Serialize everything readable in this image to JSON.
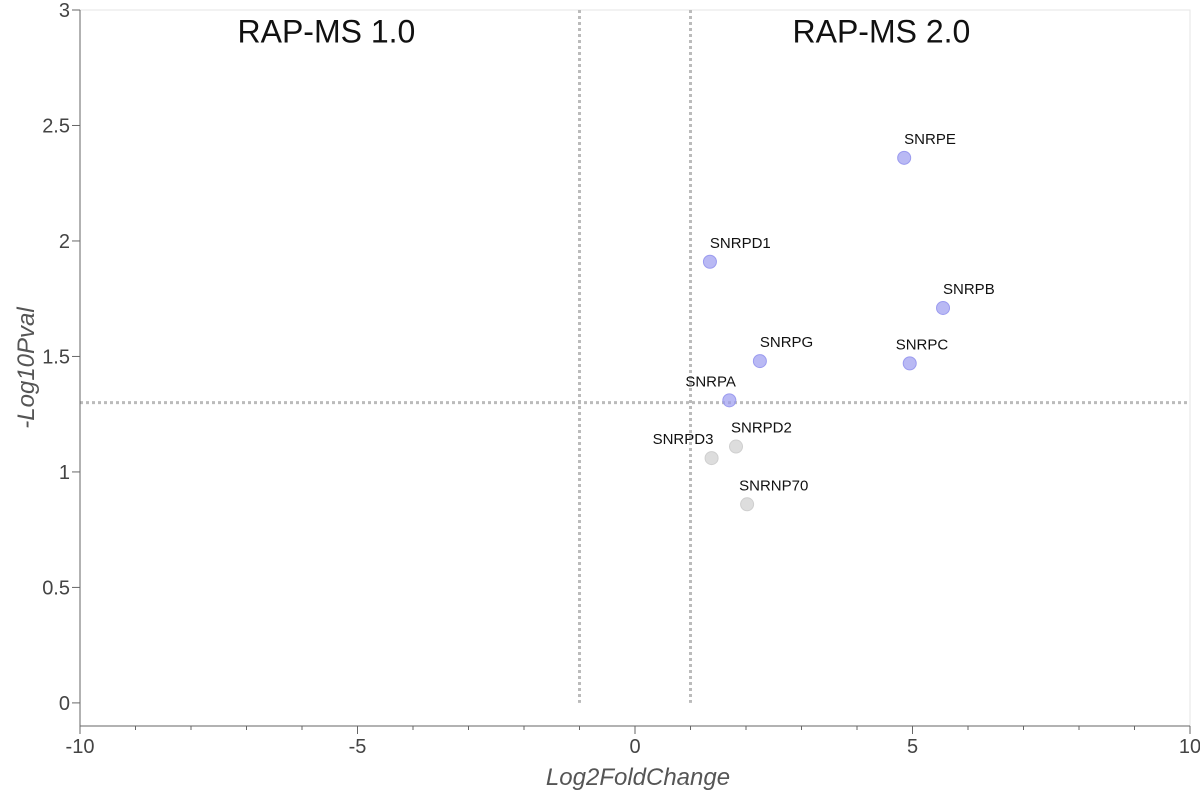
{
  "chart_data": {
    "type": "scatter",
    "title": "",
    "xlabel": "Log2FoldChange",
    "ylabel": "-Log10Pval",
    "xlim": [
      -10,
      10
    ],
    "ylim": [
      -0.1,
      3
    ],
    "x_ticks": [
      -10,
      -5,
      0,
      5,
      10
    ],
    "y_ticks": [
      0,
      0.5,
      1,
      1.5,
      2,
      2.5,
      3
    ],
    "x_tick_labels": [
      "-10",
      "-5",
      "0",
      "5",
      "10"
    ],
    "y_tick_labels": [
      "0",
      "0.5",
      "1",
      "1.5",
      "2",
      "2.5",
      "3"
    ],
    "grid": false,
    "threshold_lines": {
      "x": [
        -1,
        1
      ],
      "y": 1.3
    },
    "region_labels": [
      {
        "text": "RAP-MS 1.0",
        "x": -5,
        "y": 2.88
      },
      {
        "text": "RAP-MS 2.0",
        "x": 5,
        "y": 2.88
      }
    ],
    "colors": {
      "significant": "#9b9bef",
      "not_significant": "#cfcfcf",
      "threshold": "#bbbbbb"
    },
    "points": [
      {
        "label": "SNRPE",
        "x": 4.85,
        "y": 2.36,
        "significant": true
      },
      {
        "label": "SNRPD1",
        "x": 1.35,
        "y": 1.91,
        "significant": true
      },
      {
        "label": "SNRPB",
        "x": 5.55,
        "y": 1.71,
        "significant": true
      },
      {
        "label": "SNRPG",
        "x": 2.25,
        "y": 1.48,
        "significant": true
      },
      {
        "label": "SNRPC",
        "x": 4.95,
        "y": 1.47,
        "significant": true
      },
      {
        "label": "SNRPA",
        "x": 1.7,
        "y": 1.31,
        "significant": true
      },
      {
        "label": "SNRPD2",
        "x": 1.82,
        "y": 1.11,
        "significant": false
      },
      {
        "label": "SNRPD3",
        "x": 1.38,
        "y": 1.06,
        "significant": false
      },
      {
        "label": "SNRNP70",
        "x": 2.02,
        "y": 0.86,
        "significant": false
      }
    ]
  }
}
